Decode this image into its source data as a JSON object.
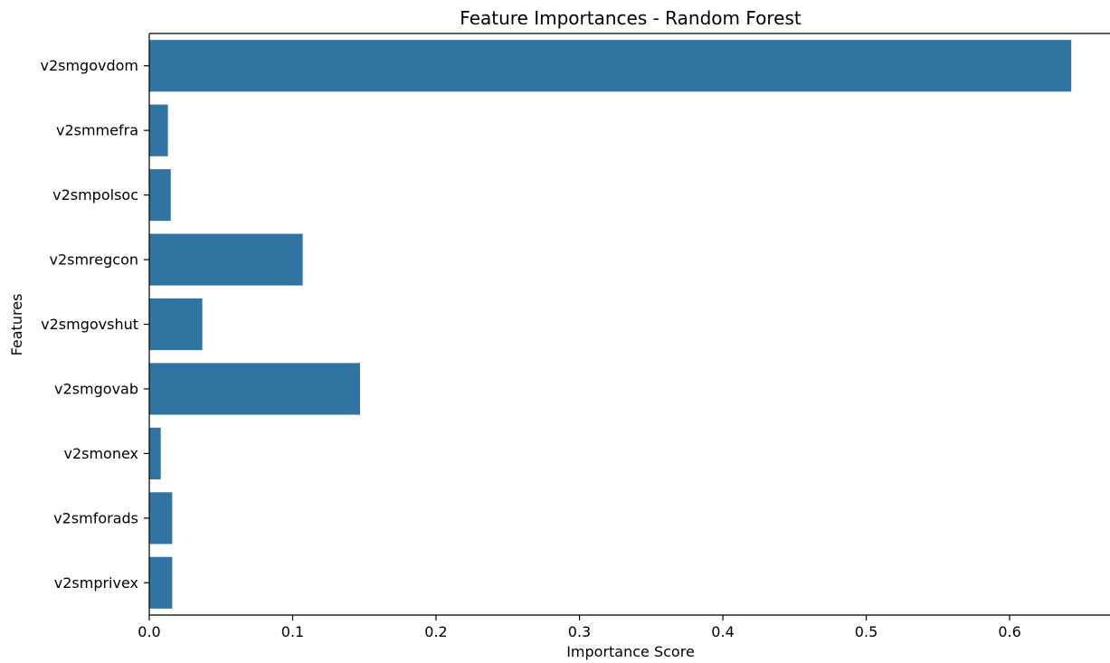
{
  "chart_data": {
    "type": "bar",
    "orientation": "horizontal",
    "title": "Feature Importances - Random Forest",
    "xlabel": "Importance Score",
    "ylabel": "Features",
    "categories": [
      "v2smgovdom",
      "v2smmefra",
      "v2smpolsoc",
      "v2smregcon",
      "v2smgovshut",
      "v2smgovab",
      "v2smonex",
      "v2smforads",
      "v2smprivex"
    ],
    "values": [
      0.643,
      0.013,
      0.015,
      0.107,
      0.037,
      0.147,
      0.008,
      0.016,
      0.016
    ],
    "xlim": [
      0,
      0.67
    ],
    "xticks": [
      0.0,
      0.1,
      0.2,
      0.3,
      0.4,
      0.5,
      0.6
    ],
    "xtick_labels": [
      "0.0",
      "0.1",
      "0.2",
      "0.3",
      "0.4",
      "0.5",
      "0.6"
    ],
    "bar_color": "#3274a1",
    "grid": false,
    "legend": "none"
  }
}
